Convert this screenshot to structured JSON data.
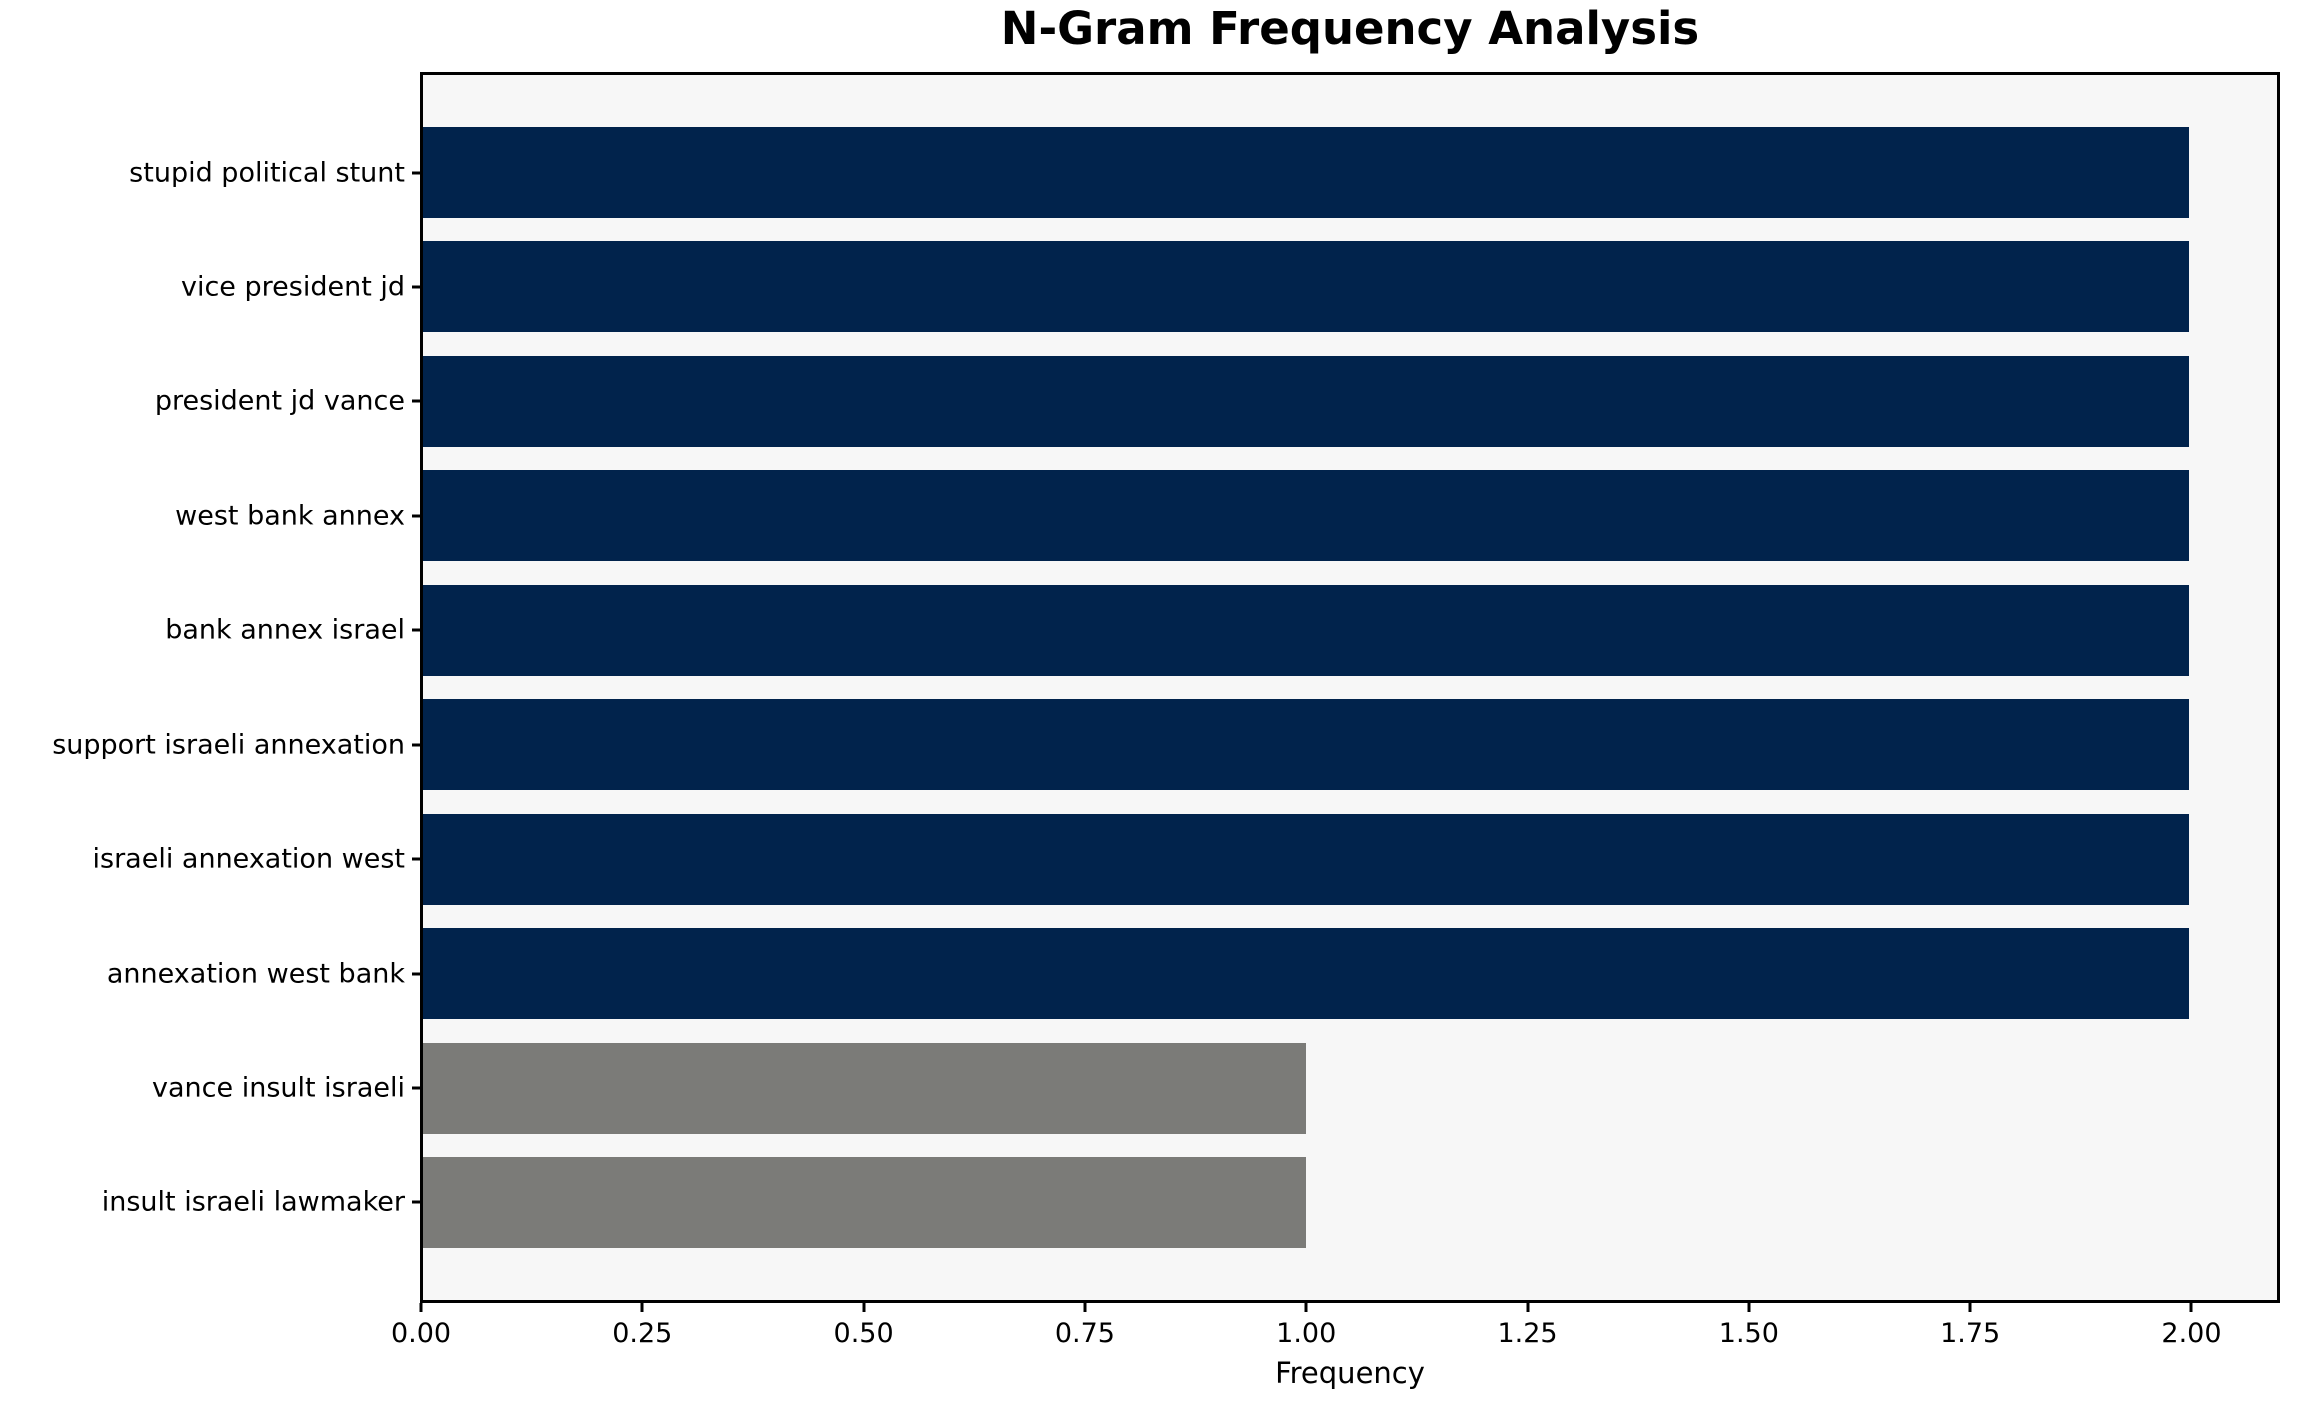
{
  "chart_data": {
    "type": "bar",
    "orientation": "horizontal",
    "title": "N-Gram Frequency Analysis",
    "xlabel": "Frequency",
    "ylabel": "",
    "categories": [
      "stupid political stunt",
      "vice president jd",
      "president jd vance",
      "west bank annex",
      "bank annex israel",
      "support israeli annexation",
      "israeli annexation west",
      "annexation west bank",
      "vance insult israeli",
      "insult israeli lawmaker"
    ],
    "values": [
      2,
      2,
      2,
      2,
      2,
      2,
      2,
      2,
      1,
      1
    ],
    "bar_colors": [
      "#01234c",
      "#01234c",
      "#01234c",
      "#01234c",
      "#01234c",
      "#01234c",
      "#01234c",
      "#01234c",
      "#7b7b78",
      "#7b7b78"
    ],
    "xlim": [
      0,
      2.1
    ],
    "xticks": [
      0,
      0.25,
      0.5,
      0.75,
      1.0,
      1.25,
      1.5,
      1.75,
      2.0
    ],
    "xtick_labels": [
      "0.00",
      "0.25",
      "0.50",
      "0.75",
      "1.00",
      "1.25",
      "1.50",
      "1.75",
      "2.00"
    ],
    "grid": false,
    "legend": null,
    "plot_background": "#f7f7f7",
    "figure_background": "#ffffff"
  }
}
